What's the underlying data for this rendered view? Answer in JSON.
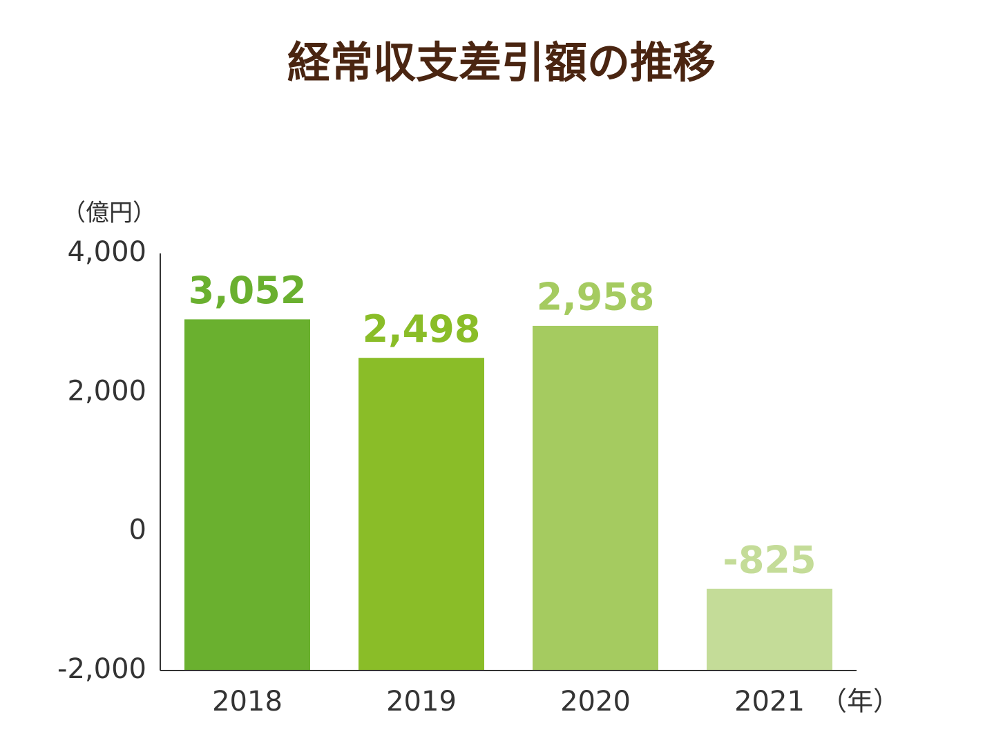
{
  "chart_data": {
    "type": "bar",
    "title": "経常収支差引額の推移",
    "y_unit_label": "（億円）",
    "x_unit_label": "（年）",
    "categories": [
      "2018",
      "2019",
      "2020",
      "2021"
    ],
    "values": [
      3052,
      2498,
      2958,
      -825
    ],
    "value_labels": [
      "3,052",
      "2,498",
      "2,958",
      "-825"
    ],
    "colors": [
      "#6ab02f",
      "#8abd28",
      "#a5cb60",
      "#c4dc98"
    ],
    "ylim": [
      -2000,
      4000
    ],
    "yticks": [
      {
        "value": -2000,
        "label": "-2,000"
      },
      0,
      {
        "value": 2000,
        "label": "2,000"
      },
      {
        "value": 4000,
        "label": "4,000"
      }
    ],
    "grid": false
  }
}
